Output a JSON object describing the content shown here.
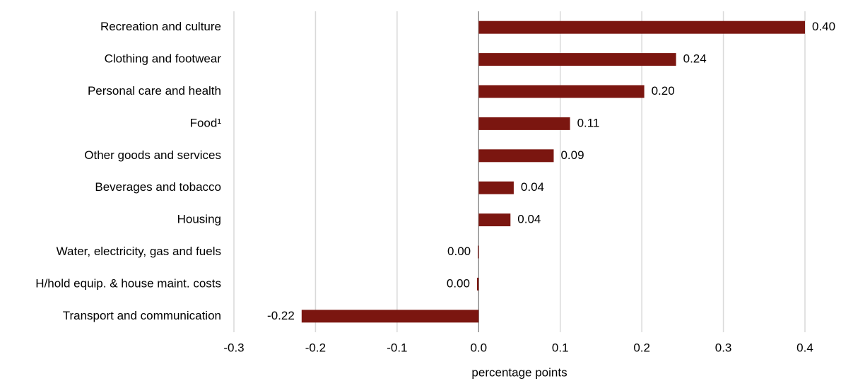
{
  "chart_data": {
    "type": "barh",
    "categories": [
      "Recreation and culture",
      "Clothing and footwear",
      "Personal care and health",
      "Food¹",
      "Other goods and services",
      "Beverages and tobacco",
      "Housing",
      "Water, electricity, gas and fuels",
      "H/hold equip. & house maint. costs",
      "Transport and communication"
    ],
    "values": [
      0.4,
      0.242,
      0.203,
      0.112,
      0.092,
      0.043,
      0.039,
      -0.001,
      -0.002,
      -0.217
    ],
    "value_labels": [
      "0.40",
      "0.24",
      "0.20",
      "0.11",
      "0.09",
      "0.04",
      "0.04",
      "0.00",
      "0.00",
      "-0.22"
    ],
    "color": "#7b1610",
    "xlabel": "percentage points",
    "xlim": [
      -0.3,
      0.4
    ],
    "xticks": [
      -0.3,
      -0.2,
      -0.1,
      {
        "value": 0,
        "label": "0.0"
      },
      0.1,
      0.2,
      0.3,
      0.4
    ],
    "grid": true
  }
}
